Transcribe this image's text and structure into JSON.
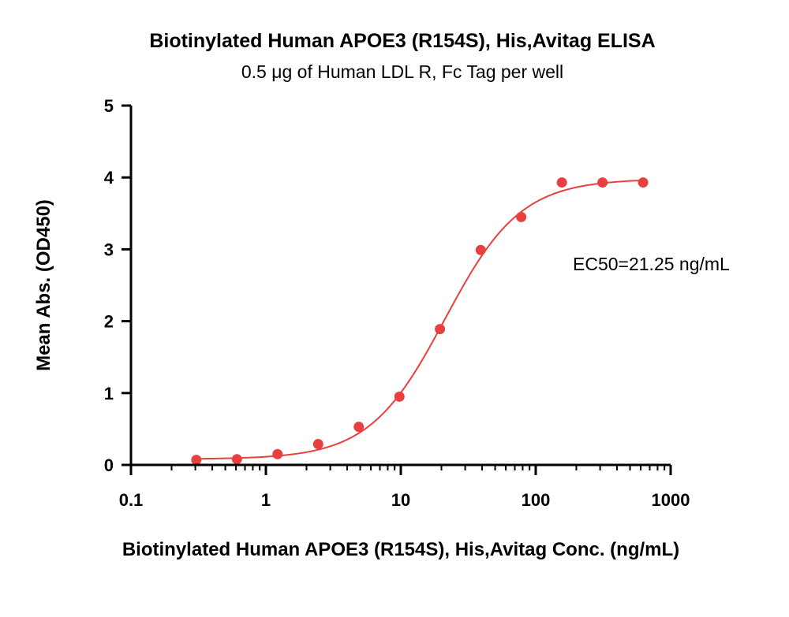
{
  "chart_data": {
    "type": "scatter",
    "title": "Biotinylated Human APOE3 (R154S), His,Avitag ELISA",
    "subtitle": "0.5 μg of Human LDL R, Fc Tag per well",
    "xlabel": "Biotinylated Human APOE3 (R154S), His,Avitag Conc. (ng/mL)",
    "ylabel": "Mean Abs. (OD450)",
    "xscale": "log",
    "xlim": [
      0.1,
      1000
    ],
    "ylim": [
      0,
      5
    ],
    "xticks": [
      0.1,
      1,
      10,
      100,
      1000
    ],
    "xtick_labels": [
      "0.1",
      "1",
      "10",
      "100",
      "1000"
    ],
    "yticks": [
      0,
      1,
      2,
      3,
      4,
      5
    ],
    "ytick_labels": [
      "0",
      "1",
      "2",
      "3",
      "4",
      "5"
    ],
    "grid": false,
    "annotation": "EC50=21.25 ng/mL",
    "color": "#e8403e",
    "series": [
      {
        "x": [
          0.305,
          0.61,
          1.22,
          2.44,
          4.88,
          9.77,
          19.5,
          39.1,
          78.1,
          156.25,
          312.5,
          625
        ],
        "y": [
          0.07,
          0.08,
          0.15,
          0.29,
          0.53,
          0.95,
          1.89,
          2.99,
          3.45,
          3.93,
          3.93,
          3.93
        ]
      }
    ],
    "fit": {
      "model": "4PL",
      "bottom": 0.08,
      "top": 3.98,
      "ec50": 21.25,
      "hill": 1.55
    }
  }
}
